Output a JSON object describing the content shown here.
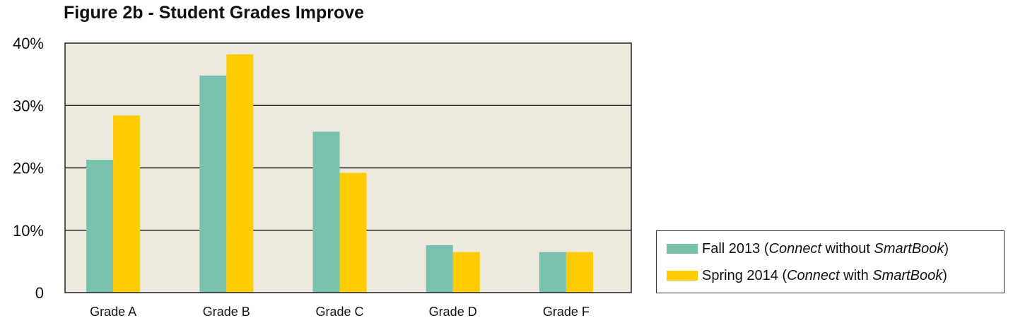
{
  "chart_data": {
    "type": "bar",
    "title": "Figure 2b - Student Grades Improve",
    "categories": [
      "Grade A",
      "Grade B",
      "Grade C",
      "Grade D",
      "Grade F"
    ],
    "yticks": [
      "0",
      "10%",
      "20%",
      "30%",
      "40%"
    ],
    "ylim": [
      0,
      40
    ],
    "series": [
      {
        "name": "Fall 2013 (Connect without SmartBook)",
        "values": [
          21.3,
          34.8,
          25.8,
          7.6,
          6.5
        ],
        "color": "#78c2ad"
      },
      {
        "name": "Spring 2014 (Connect with SmartBook)",
        "values": [
          28.4,
          38.2,
          19.2,
          6.5,
          6.5
        ],
        "color": "#ffcc00"
      }
    ],
    "plot_background": "#ede9dd",
    "gridlines": true,
    "legend_position": "bottom-right"
  },
  "legend": {
    "fall": {
      "a": "Fall 2013 (",
      "b": "Connect",
      "c": " without ",
      "d": "SmartBook",
      "e": ")"
    },
    "spring": {
      "a": "Spring 2014 (",
      "b": "Connect",
      "c": " with ",
      "d": "SmartBook",
      "e": ")"
    }
  }
}
